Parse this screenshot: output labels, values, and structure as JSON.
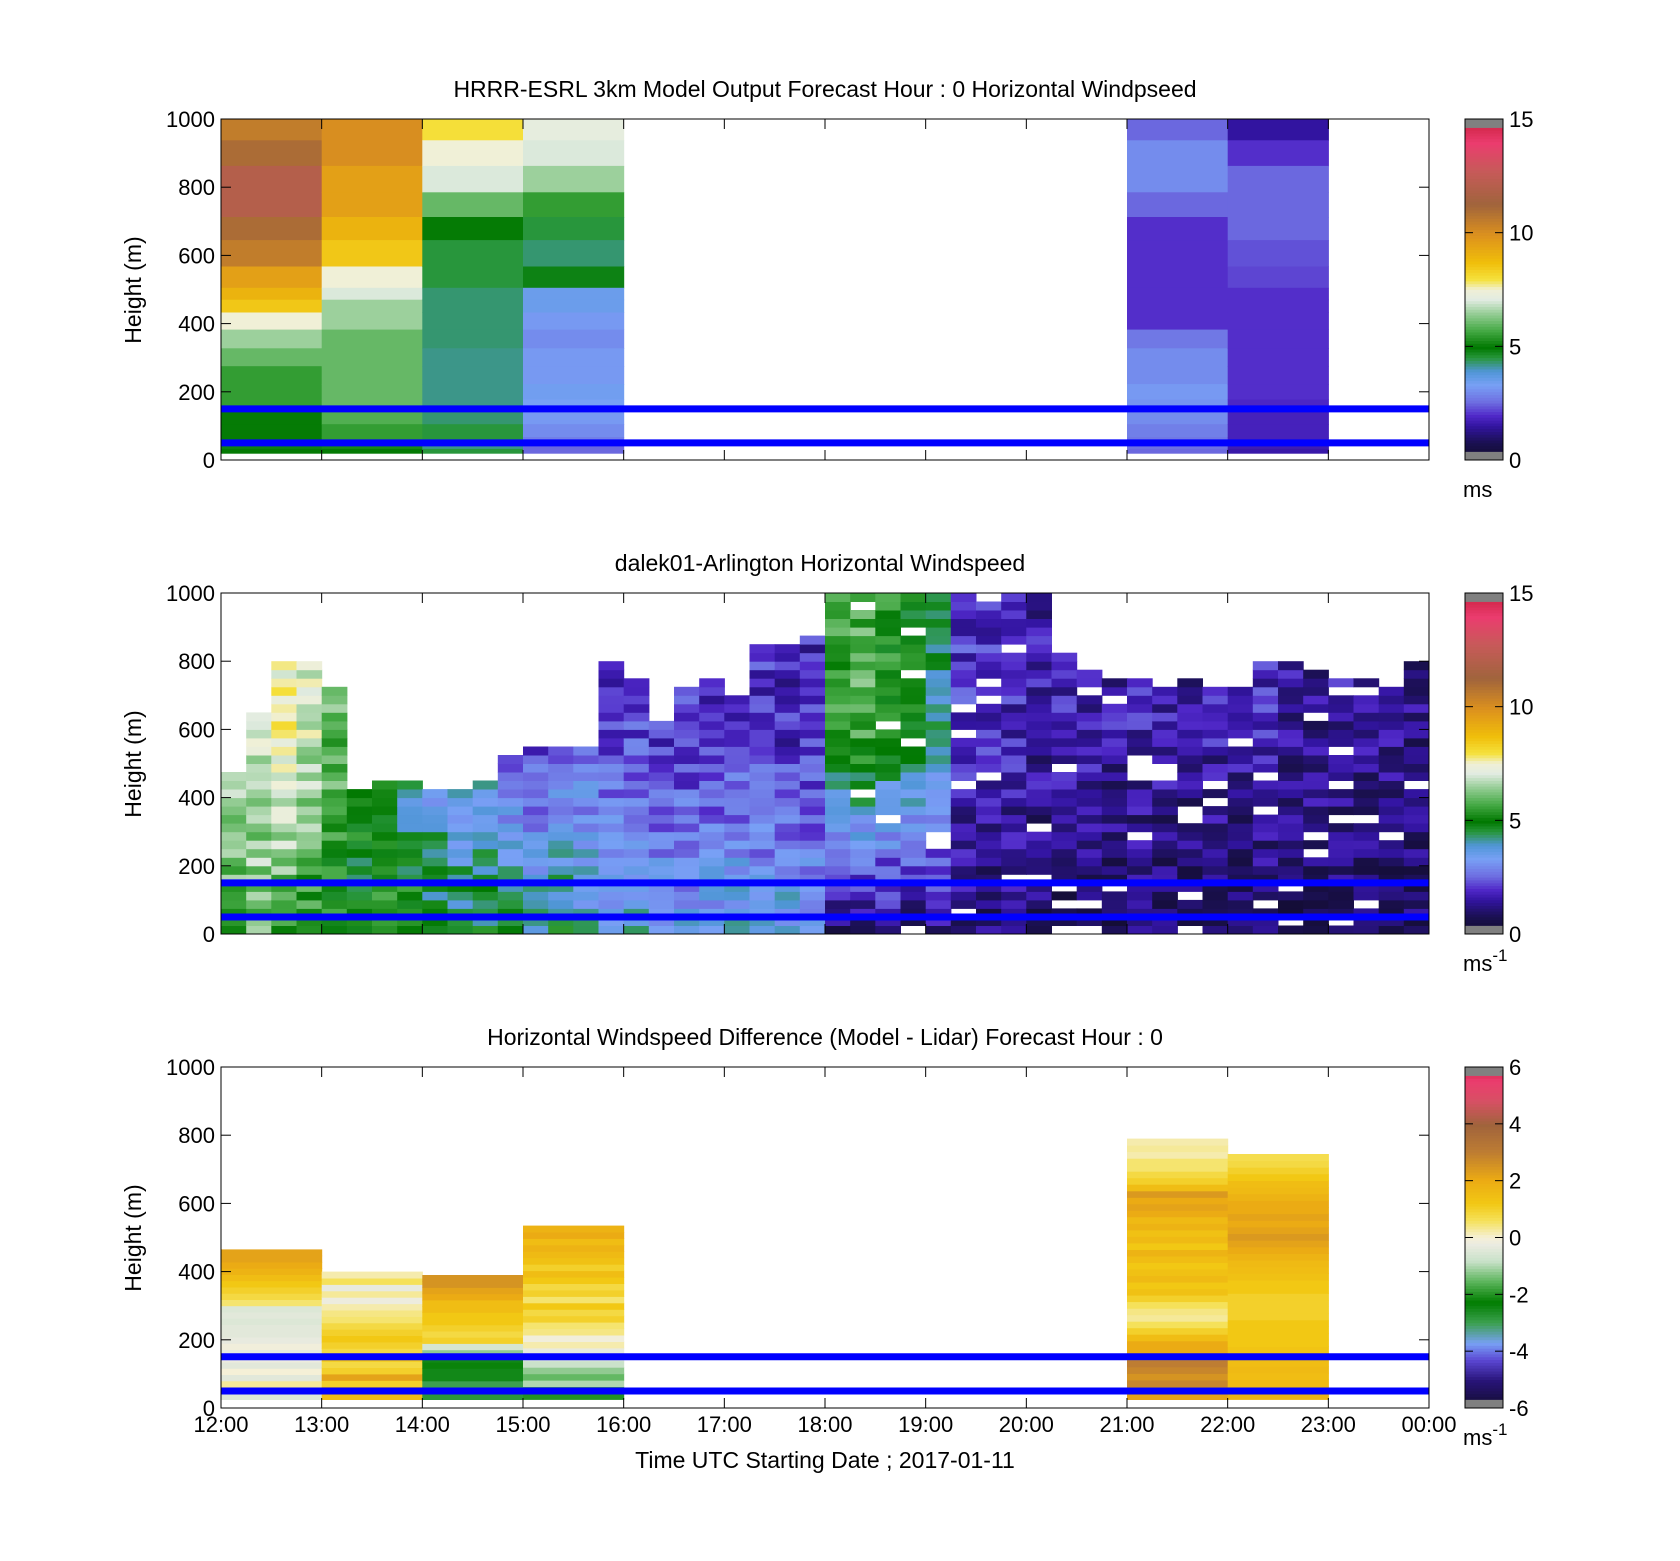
{
  "figure": {
    "xlabel": "Time UTC  Starting Date ; 2017-01-11"
  },
  "chart_data": [
    {
      "type": "heatmap",
      "title": "HRRR-ESRL 3km Model Output   Forecast Hour : 0 Horizontal Windpseed",
      "ylabel": "Height (m)",
      "xlim": [
        "12:00",
        "00:00"
      ],
      "ylim": [
        0,
        1000
      ],
      "yticks": [
        0,
        200,
        400,
        600,
        800,
        1000
      ],
      "colorbar": {
        "label": "ms",
        "ticks": [
          0,
          5,
          10,
          15
        ],
        "range": [
          0,
          15
        ]
      },
      "reference_lines_m": [
        150,
        50
      ],
      "heights_m": [
        975,
        900,
        825,
        745,
        680,
        610,
        525,
        485,
        455,
        410,
        355,
        300,
        250,
        195,
        160,
        125,
        85,
        50,
        40,
        25
      ],
      "columns": [
        {
          "time": "12:00",
          "speed_ms": [
            10.5,
            11.0,
            12.0,
            12.0,
            11.0,
            10.5,
            9.5,
            9.0,
            8.5,
            7.5,
            6.5,
            6.0,
            5.5,
            5.5,
            5.5,
            5.0,
            5.0,
            5.0,
            4.8,
            5.0
          ]
        },
        {
          "time": "13:00",
          "speed_ms": [
            10.0,
            10.0,
            9.5,
            9.5,
            9.0,
            8.5,
            7.5,
            7.0,
            6.5,
            6.5,
            6.0,
            6.0,
            6.0,
            6.0,
            6.0,
            5.8,
            5.5,
            5.5,
            5.2,
            5.0
          ]
        },
        {
          "time": "14:00",
          "speed_ms": [
            8.0,
            7.5,
            7.0,
            6.0,
            5.0,
            4.5,
            4.5,
            4.3,
            4.3,
            4.3,
            4.3,
            4.2,
            4.2,
            4.2,
            4.2,
            4.3,
            4.5,
            4.5,
            4.2,
            4.5
          ]
        },
        {
          "time": "15:00",
          "speed_ms": [
            7.2,
            7.0,
            6.5,
            5.5,
            4.5,
            4.3,
            4.8,
            3.5,
            3.5,
            3.2,
            3.0,
            3.2,
            3.2,
            3.4,
            3.3,
            3.2,
            3.0,
            2.8,
            2.5,
            2.5
          ]
        },
        {
          "time": "16:00",
          "speed_ms": [
            null,
            null,
            null,
            null,
            null,
            null,
            null,
            null,
            null,
            null,
            null,
            null,
            null,
            null,
            null,
            null,
            null,
            null,
            null,
            null
          ]
        },
        {
          "time": "17:00",
          "speed_ms": [
            null,
            null,
            null,
            null,
            null,
            null,
            null,
            null,
            null,
            null,
            null,
            null,
            null,
            null,
            null,
            null,
            null,
            null,
            null,
            null
          ]
        },
        {
          "time": "18:00",
          "speed_ms": [
            null,
            null,
            null,
            null,
            null,
            null,
            null,
            null,
            null,
            null,
            null,
            null,
            null,
            null,
            null,
            null,
            null,
            null,
            null,
            null
          ]
        },
        {
          "time": "19:00",
          "speed_ms": [
            null,
            null,
            null,
            null,
            null,
            null,
            null,
            null,
            null,
            null,
            null,
            null,
            null,
            null,
            null,
            null,
            null,
            null,
            null,
            null
          ]
        },
        {
          "time": "20:00",
          "speed_ms": [
            null,
            null,
            null,
            null,
            null,
            null,
            null,
            null,
            null,
            null,
            null,
            null,
            null,
            null,
            null,
            null,
            null,
            null,
            null,
            null
          ]
        },
        {
          "time": "21:00",
          "speed_ms": [
            2.5,
            3.0,
            3.0,
            2.5,
            2.0,
            2.0,
            2.0,
            2.0,
            2.0,
            2.0,
            2.7,
            3.0,
            3.0,
            3.2,
            3.1,
            3.0,
            2.8,
            2.7,
            2.6,
            2.5
          ]
        },
        {
          "time": "22:00",
          "speed_ms": [
            1.5,
            2.0,
            2.5,
            2.5,
            2.5,
            2.3,
            2.2,
            2.0,
            2.0,
            2.0,
            2.0,
            2.0,
            2.0,
            2.0,
            1.9,
            1.8,
            1.8,
            1.8,
            1.7,
            1.6
          ]
        },
        {
          "time": "23:00",
          "speed_ms": [
            null,
            null,
            null,
            null,
            null,
            null,
            null,
            null,
            null,
            null,
            null,
            null,
            null,
            null,
            null,
            null,
            null,
            null,
            null,
            null
          ]
        }
      ]
    },
    {
      "type": "heatmap",
      "title": "dalek01-Arlington  Horizontal Windspeed",
      "ylabel": "Height (m)",
      "xlim": [
        "12:00",
        "00:00"
      ],
      "ylim": [
        0,
        1000
      ],
      "yticks": [
        0,
        200,
        400,
        600,
        800,
        1000
      ],
      "colorbar": {
        "label": "ms",
        "label_superscript": "-1",
        "ticks": [
          0,
          5,
          10,
          15
        ],
        "range": [
          0,
          15
        ]
      },
      "reference_lines_m": [
        150,
        50
      ],
      "height_bins_m": {
        "start": 0,
        "step": 25,
        "count": 40
      },
      "time_bins": {
        "start": "12:00",
        "step_minutes": 15,
        "count": 48
      },
      "profile_tops_m": [
        480,
        660,
        790,
        800,
        730,
        420,
        440,
        450,
        430,
        420,
        460,
        520,
        550,
        560,
        560,
        800,
        750,
        620,
        720,
        760,
        700,
        860,
        850,
        880,
        1000,
        1000,
        1000,
        1000,
        1000,
        1000,
        1000,
        1000,
        1000,
        820,
        780,
        760,
        760,
        720,
        760,
        760,
        720,
        800,
        800,
        780,
        760,
        740,
        760,
        800
      ],
      "surface_speeds_ms": [
        5.8,
        6.0,
        5.6,
        5.2,
        5.0,
        4.8,
        5.2,
        5.5,
        5.0,
        4.6,
        4.8,
        4.5,
        4.2,
        4.8,
        4.0,
        3.6,
        3.8,
        3.4,
        3.4,
        3.6,
        3.8,
        3.6,
        3.8,
        3.5,
        0.8,
        0.9,
        1.0,
        0.9,
        1.2,
        1.1,
        1.0,
        1.2,
        0.9,
        0.8,
        0.8,
        0.7,
        0.9,
        0.8,
        0.7,
        0.8,
        0.9,
        0.8,
        0.7,
        0.9,
        0.8,
        0.7,
        0.8,
        0.9
      ],
      "aloft_speeds_ms": [
        6.5,
        7.0,
        7.5,
        7.0,
        6.0,
        5.0,
        4.8,
        3.5,
        3.0,
        3.0,
        3.2,
        2.2,
        2.0,
        2.2,
        2.5,
        2.0,
        2.2,
        2.0,
        2.0,
        2.0,
        2.0,
        2.0,
        1.8,
        1.8,
        5.5,
        5.8,
        5.2,
        5.0,
        4.2,
        2.0,
        2.0,
        1.8,
        1.6,
        1.8,
        1.7,
        1.6,
        1.8,
        1.6,
        1.5,
        1.7,
        1.6,
        1.8,
        1.5,
        1.4,
        1.6,
        1.5,
        1.4,
        1.3
      ]
    },
    {
      "type": "heatmap",
      "title": "Horizontal Windspeed Difference (Model - Lidar) Forecast Hour : 0",
      "ylabel": "Height (m)",
      "xlabel": "Time UTC  Starting Date ; 2017-01-11",
      "xlim": [
        "12:00",
        "00:00"
      ],
      "xticks": [
        "12:00",
        "13:00",
        "14:00",
        "15:00",
        "16:00",
        "17:00",
        "18:00",
        "19:00",
        "20:00",
        "21:00",
        "22:00",
        "23:00",
        "00:00"
      ],
      "ylim": [
        0,
        1000
      ],
      "yticks": [
        0,
        200,
        400,
        600,
        800,
        1000
      ],
      "colorbar": {
        "label": "ms",
        "label_superscript": "-1",
        "ticks": [
          -6,
          -4,
          -2,
          0,
          2,
          4,
          6
        ],
        "range": [
          -6,
          6
        ]
      },
      "reference_lines_m": [
        150,
        50
      ],
      "height_bins_m": {
        "start": 0,
        "step": 20
      },
      "columns": [
        {
          "time": "12:00",
          "top_m": 465,
          "diff_ms": [
            -0.5,
            -1.0,
            0.3,
            -0.4,
            0.0,
            -0.4,
            -0.2,
            -0.3,
            -0.1,
            -0.3,
            -0.4,
            -0.4,
            -0.5,
            -0.4,
            -0.5,
            0.5,
            0.8,
            1.0,
            1.2,
            1.5,
            1.8,
            2.0,
            2.2,
            2.2
          ]
        },
        {
          "time": "13:00",
          "top_m": 400,
          "diff_ms": [
            1.5,
            2.0,
            1.0,
            2.2,
            1.0,
            0.8,
            1.2,
            0.8,
            1.0,
            1.2,
            1.0,
            0.8,
            0.5,
            0.4,
            0.2,
            -0.2,
            0.3,
            -0.3,
            0.6,
            0.2
          ]
        },
        {
          "time": "14:00",
          "top_m": 390,
          "diff_ms": [
            -2.8,
            -3.0,
            -3.0,
            -2.5,
            -2.5,
            -2.2,
            -2.5,
            -1.2,
            -0.6,
            1.0,
            0.8,
            1.0,
            1.2,
            1.2,
            1.5,
            1.5,
            2.0,
            2.2,
            2.5,
            2.5
          ]
        },
        {
          "time": "15:00",
          "top_m": 535,
          "diff_ms": [
            -2.0,
            -1.8,
            -1.0,
            -1.5,
            -1.2,
            -0.8,
            -0.5,
            -0.3,
            0.2,
            -0.1,
            0.4,
            0.5,
            1.0,
            0.8,
            1.2,
            0.5,
            1.0,
            0.8,
            1.2,
            1.5,
            1.0,
            1.4,
            1.6,
            1.8,
            1.5,
            2.0,
            1.8
          ]
        },
        {
          "time": "16:00",
          "top_m": 0,
          "diff_ms": []
        },
        {
          "time": "17:00",
          "top_m": 0,
          "diff_ms": []
        },
        {
          "time": "18:00",
          "top_m": 0,
          "diff_ms": []
        },
        {
          "time": "19:00",
          "top_m": 0,
          "diff_ms": []
        },
        {
          "time": "20:00",
          "top_m": 0,
          "diff_ms": []
        },
        {
          "time": "21:00",
          "top_m": 790,
          "diff_ms": [
            2.2,
            2.5,
            2.8,
            2.5,
            2.8,
            3.0,
            2.5,
            2.0,
            2.0,
            1.5,
            1.0,
            0.6,
            0.3,
            0.4,
            0.6,
            1.0,
            1.4,
            1.2,
            1.6,
            1.4,
            1.2,
            1.5,
            1.8,
            1.2,
            1.6,
            1.4,
            1.8,
            1.6,
            2.0,
            2.2,
            2.0,
            2.4,
            1.5,
            1.0,
            0.8,
            0.5,
            0.5,
            0.2,
            0.3,
            0.2
          ]
        },
        {
          "time": "22:00",
          "top_m": 745,
          "diff_ms": [
            1.8,
            1.6,
            1.6,
            1.5,
            1.6,
            1.5,
            1.4,
            1.3,
            1.2,
            1.2,
            1.2,
            1.2,
            1.0,
            1.0,
            1.0,
            1.0,
            1.2,
            1.2,
            1.4,
            1.5,
            1.6,
            1.8,
            2.0,
            2.2,
            2.4,
            2.2,
            2.0,
            2.2,
            2.0,
            2.0,
            1.8,
            1.6,
            1.5,
            1.2,
            1.0,
            0.8,
            0.7
          ]
        },
        {
          "time": "23:00",
          "top_m": 0,
          "diff_ms": []
        }
      ]
    }
  ]
}
